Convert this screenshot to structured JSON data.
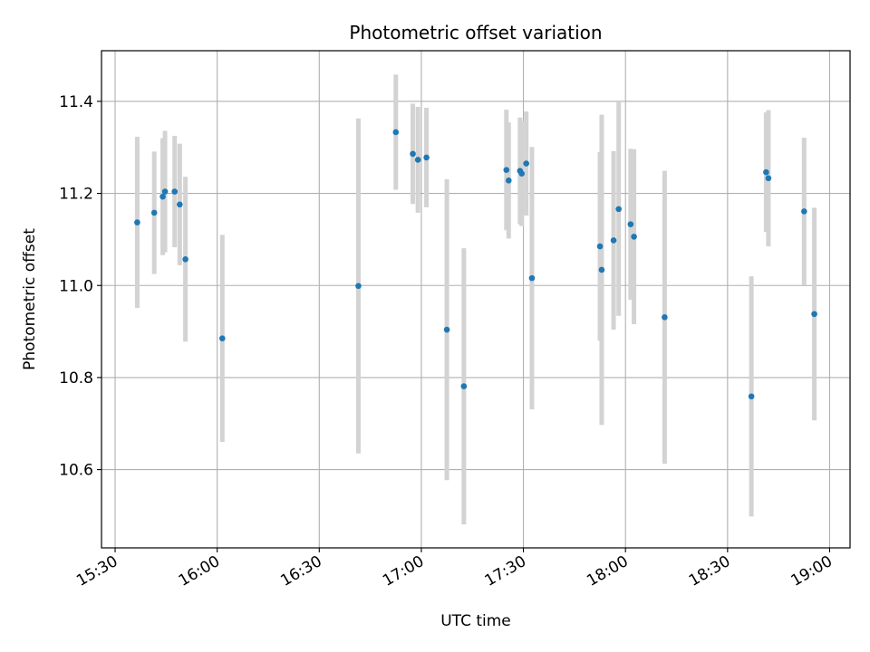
{
  "chart_data": {
    "type": "scatter",
    "title": "Photometric offset variation",
    "xlabel": "UTC time",
    "ylabel": "Photometric offset",
    "x_axis_kind": "time",
    "xlim": [
      "15:26",
      "19:06"
    ],
    "ylim": [
      10.43,
      11.51
    ],
    "x_ticks": [
      "15:30",
      "16:00",
      "16:30",
      "17:00",
      "17:30",
      "18:00",
      "18:30",
      "19:00"
    ],
    "y_ticks": [
      10.6,
      10.8,
      11.0,
      11.2,
      11.4
    ],
    "y_tick_labels": [
      "10.6",
      "10.8",
      "11.0",
      "11.2",
      "11.4"
    ],
    "grid": true,
    "point_color": "#1f77b4",
    "errorbar_color": "#d3d3d3",
    "points": [
      {
        "t": "15:36:30",
        "y": 11.137,
        "err": 0.186
      },
      {
        "t": "15:41:30",
        "y": 11.158,
        "err": 0.133
      },
      {
        "t": "15:44:00",
        "y": 11.193,
        "err": 0.127
      },
      {
        "t": "15:44:40",
        "y": 11.204,
        "err": 0.132
      },
      {
        "t": "15:47:30",
        "y": 11.204,
        "err": 0.121
      },
      {
        "t": "15:49:00",
        "y": 11.176,
        "err": 0.132
      },
      {
        "t": "15:50:40",
        "y": 11.057,
        "err": 0.179
      },
      {
        "t": "16:01:30",
        "y": 10.885,
        "err": 0.225
      },
      {
        "t": "16:41:30",
        "y": 10.999,
        "err": 0.364
      },
      {
        "t": "16:52:30",
        "y": 11.333,
        "err": 0.125
      },
      {
        "t": "16:57:30",
        "y": 11.286,
        "err": 0.109
      },
      {
        "t": "16:59:00",
        "y": 11.273,
        "err": 0.115
      },
      {
        "t": "17:01:30",
        "y": 11.278,
        "err": 0.108
      },
      {
        "t": "17:07:30",
        "y": 10.904,
        "err": 0.327
      },
      {
        "t": "17:12:30",
        "y": 10.781,
        "err": 0.3
      },
      {
        "t": "17:25:00",
        "y": 11.251,
        "err": 0.131
      },
      {
        "t": "17:25:40",
        "y": 11.228,
        "err": 0.126
      },
      {
        "t": "17:29:00",
        "y": 11.249,
        "err": 0.116
      },
      {
        "t": "17:29:30",
        "y": 11.243,
        "err": 0.114
      },
      {
        "t": "17:30:50",
        "y": 11.265,
        "err": 0.113
      },
      {
        "t": "17:32:30",
        "y": 11.016,
        "err": 0.285
      },
      {
        "t": "17:52:30",
        "y": 11.085,
        "err": 0.205
      },
      {
        "t": "17:53:00",
        "y": 11.034,
        "err": 0.337
      },
      {
        "t": "17:56:30",
        "y": 11.098,
        "err": 0.194
      },
      {
        "t": "17:58:00",
        "y": 11.166,
        "err": 0.232
      },
      {
        "t": "18:01:30",
        "y": 11.133,
        "err": 0.164
      },
      {
        "t": "18:02:30",
        "y": 11.106,
        "err": 0.19
      },
      {
        "t": "18:11:30",
        "y": 10.931,
        "err": 0.318
      },
      {
        "t": "18:37:00",
        "y": 10.759,
        "err": 0.261
      },
      {
        "t": "18:41:20",
        "y": 11.246,
        "err": 0.13
      },
      {
        "t": "18:42:00",
        "y": 11.233,
        "err": 0.148
      },
      {
        "t": "18:52:30",
        "y": 11.161,
        "err": 0.16
      },
      {
        "t": "18:55:30",
        "y": 10.938,
        "err": 0.231
      }
    ]
  }
}
